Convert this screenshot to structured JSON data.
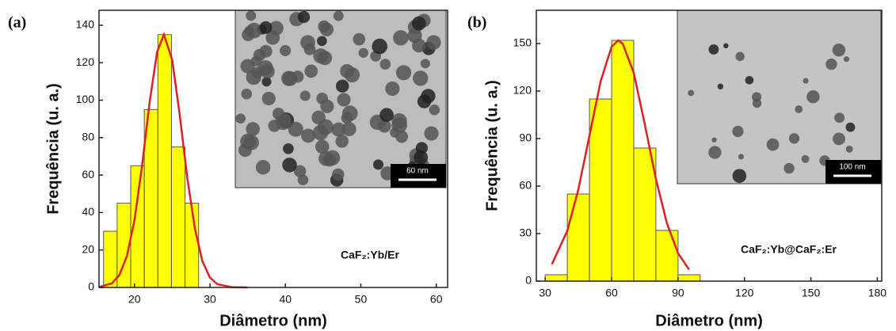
{
  "chart_data": [
    {
      "type": "histogram",
      "panel_label": "(a)",
      "xlabel": "Diâmetro (nm)",
      "ylabel": "Frequência (u. a.)",
      "annotation": "CaF₂:Yb/Er",
      "bins": [
        15.9,
        17.7,
        19.5,
        21.3,
        23.1,
        24.9,
        26.7,
        28.5
      ],
      "values": [
        30,
        45,
        65,
        95,
        135,
        75,
        45
      ],
      "color": "#ffff00",
      "fit": {
        "color": "#e02020",
        "x": [
          15.3,
          17,
          18,
          19,
          20,
          21,
          22,
          23,
          23.9,
          25,
          26,
          27,
          28,
          29,
          30,
          31,
          33,
          35
        ],
        "values": [
          0.2,
          2.2,
          6.6,
          16.8,
          36,
          65,
          98.7,
          125.8,
          135,
          121.5,
          92,
          58.6,
          31.4,
          14,
          5.3,
          1.7,
          0.1,
          0
        ]
      },
      "xlim": [
        15.3,
        61.5
      ],
      "xticks": [
        20,
        30,
        40,
        50,
        60
      ],
      "ylim": [
        0,
        148
      ],
      "yticks": [
        0,
        20,
        40,
        60,
        80,
        100,
        120,
        140
      ],
      "inset_scale": "60 nm"
    },
    {
      "type": "histogram",
      "panel_label": "(b)",
      "xlabel": "Diâmetro (nm)",
      "ylabel": "Frequência (u. a.)",
      "annotation": "CaF₂:Yb@CaF₂:Er",
      "bins": [
        30,
        40,
        50,
        60,
        70,
        80,
        90,
        100
      ],
      "values": [
        4,
        55,
        115,
        152,
        84,
        32,
        4
      ],
      "color": "#ffff00",
      "fit": {
        "color": "#e02020",
        "x": [
          33,
          40,
          45,
          50,
          55,
          60,
          63,
          65,
          70,
          75,
          80,
          85,
          90,
          95
        ],
        "values": [
          10.6,
          31.8,
          58,
          92,
          126,
          148,
          152,
          150,
          131.5,
          99,
          64.6,
          36.4,
          17.6,
          7.3
        ]
      },
      "xlim": [
        26,
        182
      ],
      "xticks": [
        30,
        60,
        90,
        120,
        150,
        180
      ],
      "ylim": [
        0,
        171
      ],
      "yticks": [
        0,
        30,
        60,
        90,
        120,
        150
      ],
      "inset_scale": "100 nm"
    }
  ]
}
